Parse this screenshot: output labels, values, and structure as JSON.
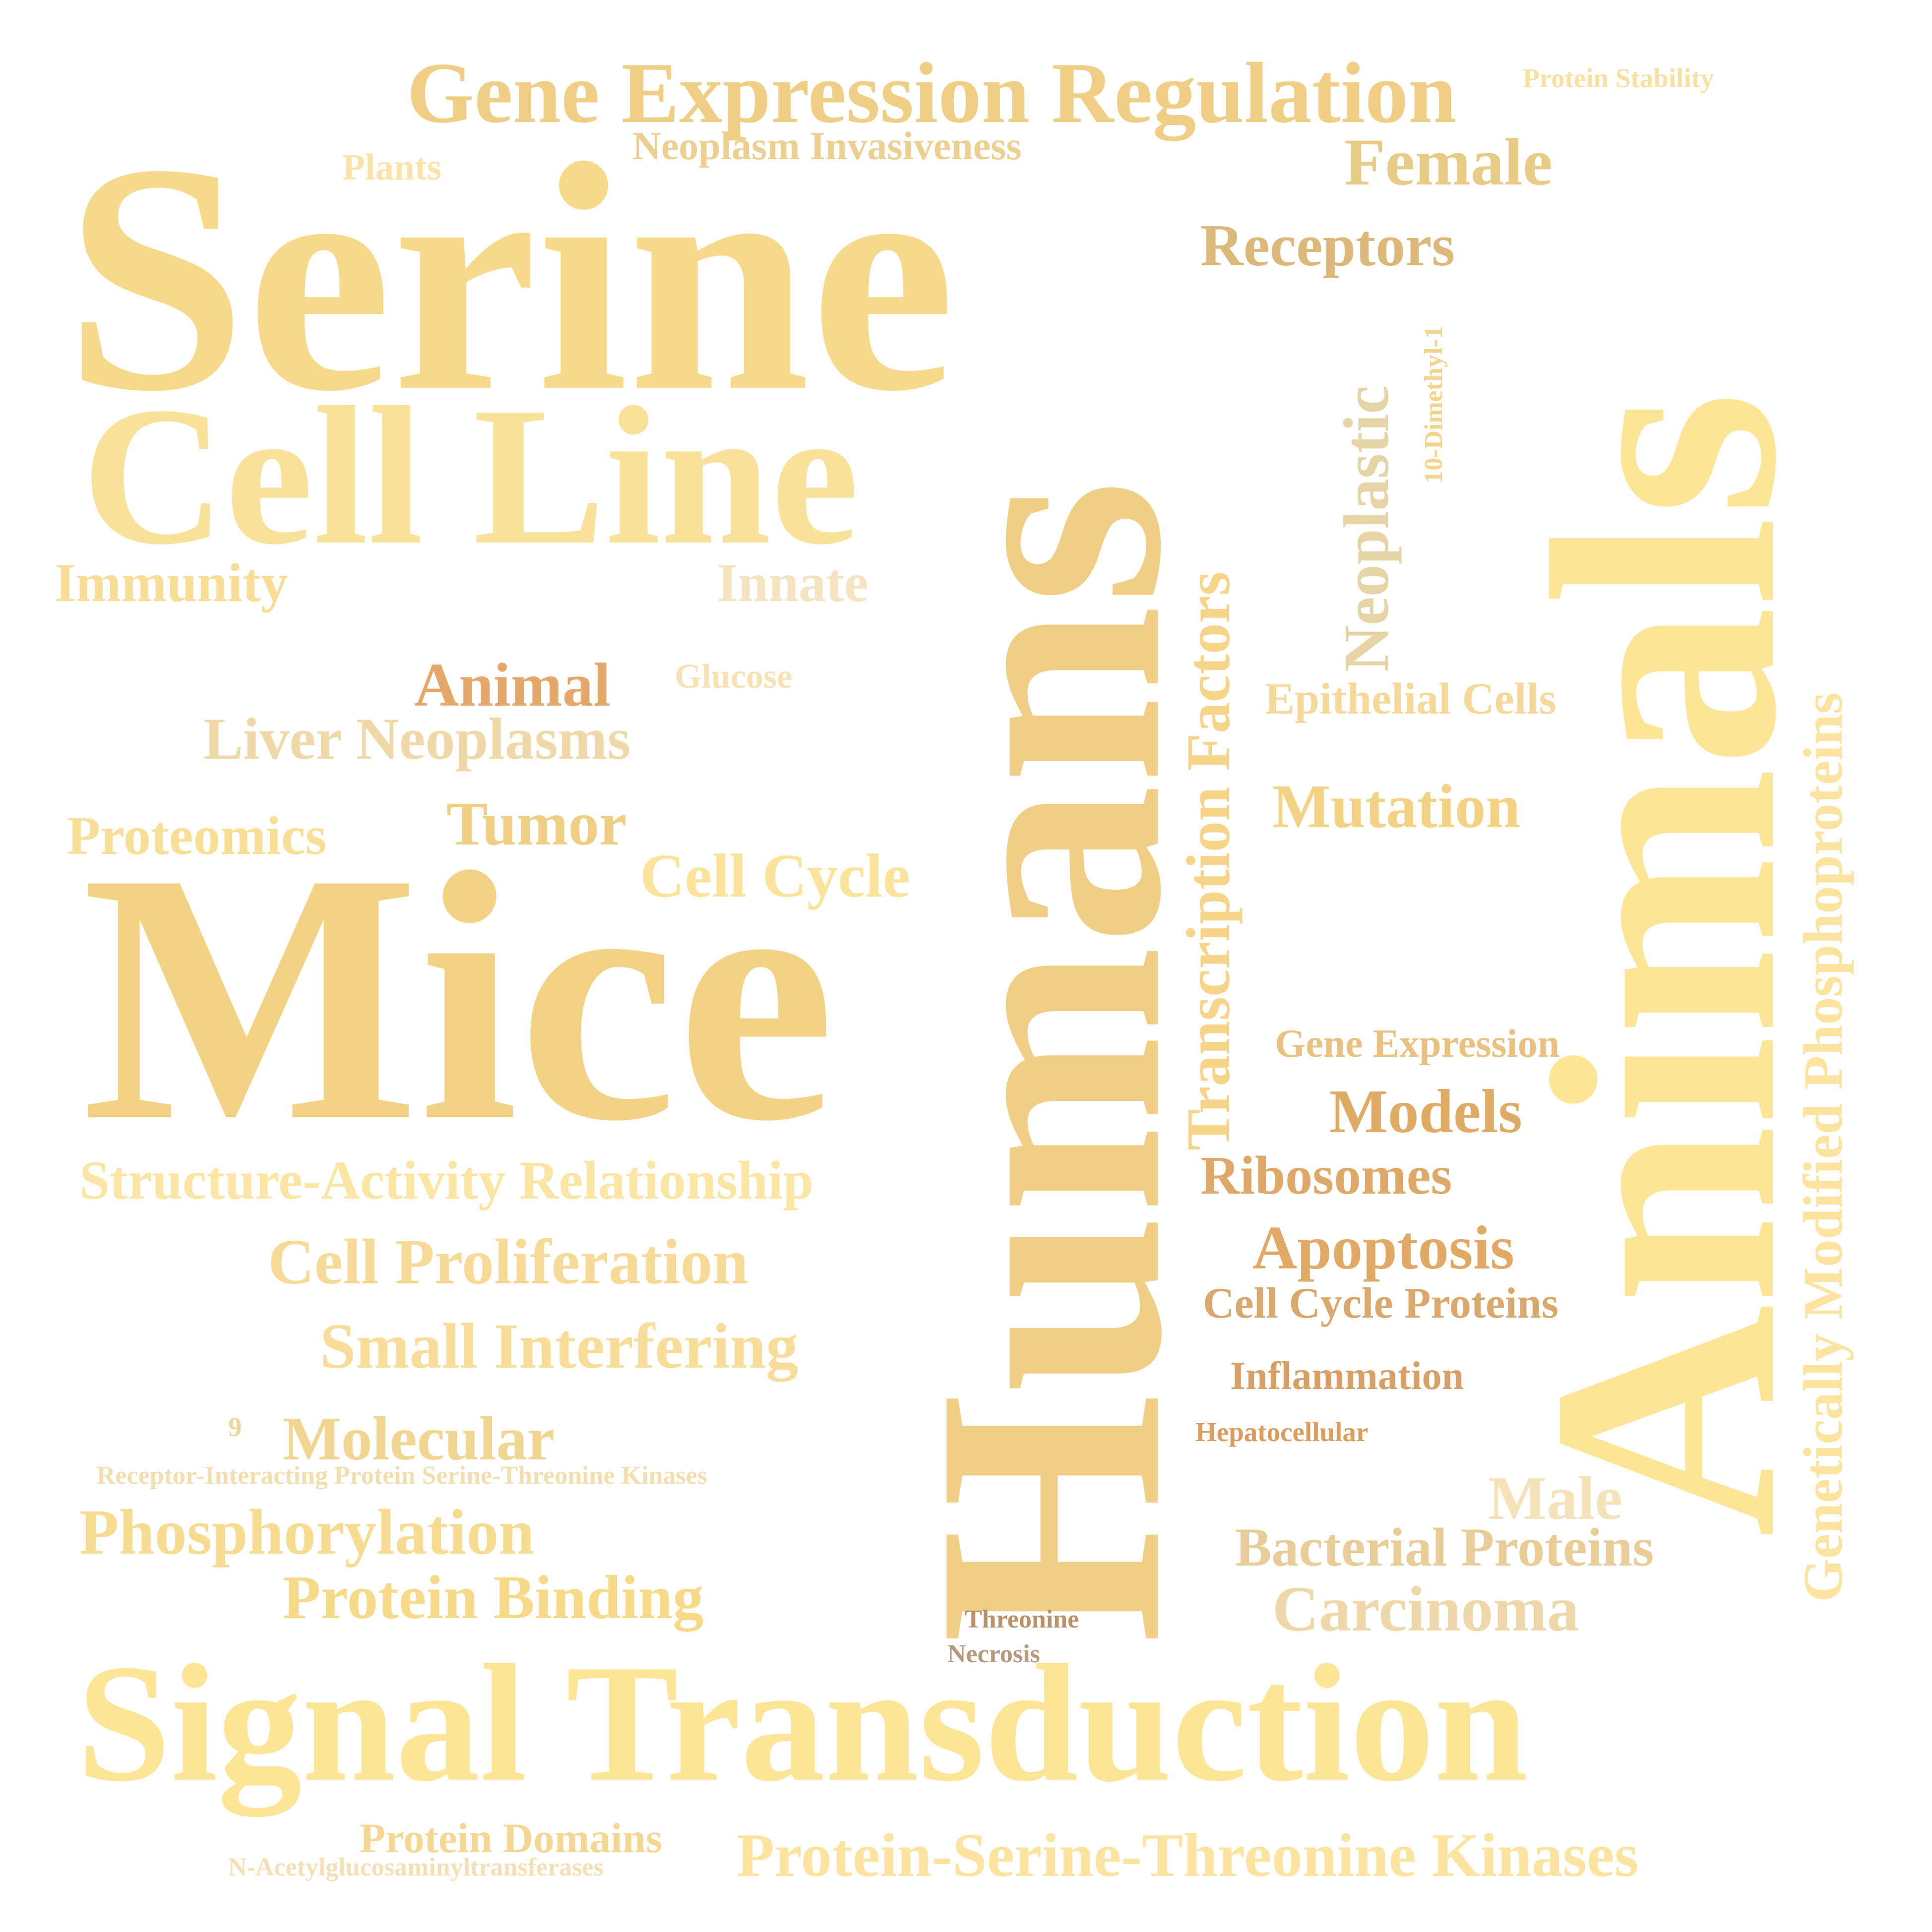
{
  "word_cloud": {
    "words": [
      {
        "id": "serine",
        "text": "Serine",
        "color": "#f6d98a"
      },
      {
        "id": "cellline",
        "text": "Cell Line",
        "color": "#f8e29a"
      },
      {
        "id": "mice",
        "text": "Mice",
        "color": "#f2d386"
      },
      {
        "id": "signal",
        "text": "Signal Transduction",
        "color": "#fde597"
      },
      {
        "id": "humans",
        "text": "Humans",
        "color": "#eecf85"
      },
      {
        "id": "animals",
        "text": "Animals",
        "color": "#fde598"
      },
      {
        "id": "genmod",
        "text": "Genetically Modified Phosphoproteins",
        "color": "#fce4a0"
      },
      {
        "id": "tf",
        "text": "Transcription Factors",
        "color": "#f6d58a"
      },
      {
        "id": "neo",
        "text": "Neoplastic",
        "color": "#e6d3a6"
      },
      {
        "id": "dimethyl",
        "text": "10-Dimethyl-1",
        "color": "#f3d48d"
      },
      {
        "id": "geneexpreg",
        "text": "Gene Expression Regulation",
        "color": "#efcf85"
      },
      {
        "id": "protstab",
        "text": "Protein Stability",
        "color": "#f8e0a0"
      },
      {
        "id": "neoinv",
        "text": "Neoplasm Invasiveness",
        "color": "#ecd092"
      },
      {
        "id": "plants",
        "text": "Plants",
        "color": "#f9e3a8"
      },
      {
        "id": "female",
        "text": "Female",
        "color": "#e8cc86"
      },
      {
        "id": "receptors",
        "text": "Receptors",
        "color": "#dcb97a"
      },
      {
        "id": "immunity",
        "text": "Immunity",
        "color": "#f7dd95"
      },
      {
        "id": "innate",
        "text": "Innate",
        "color": "#f4e3bf"
      },
      {
        "id": "animal",
        "text": "Animal",
        "color": "#e4a86a"
      },
      {
        "id": "glucose",
        "text": "Glucose",
        "color": "#f6e2b5"
      },
      {
        "id": "epith",
        "text": "Epithelial Cells",
        "color": "#f5d89a"
      },
      {
        "id": "liverneo",
        "text": "Liver Neoplasms",
        "color": "#efd9a8"
      },
      {
        "id": "mutation",
        "text": "Mutation",
        "color": "#f4d284"
      },
      {
        "id": "proteomics",
        "text": "Proteomics",
        "color": "#f8df96"
      },
      {
        "id": "tumor",
        "text": "Tumor",
        "color": "#efcf86"
      },
      {
        "id": "cellcycle",
        "text": "Cell Cycle",
        "color": "#fbe49a"
      },
      {
        "id": "geneexp",
        "text": "Gene Expression",
        "color": "#e9c281"
      },
      {
        "id": "models",
        "text": "Models",
        "color": "#dfac68"
      },
      {
        "id": "sar",
        "text": "Structure-Activity Relationship",
        "color": "#fae5a2"
      },
      {
        "id": "ribosomes",
        "text": "Ribosomes",
        "color": "#dea869"
      },
      {
        "id": "apoptosis",
        "text": "Apoptosis",
        "color": "#e2a866"
      },
      {
        "id": "cellprolif",
        "text": "Cell Proliferation",
        "color": "#f6da96"
      },
      {
        "id": "ccproteins",
        "text": "Cell Cycle Proteins",
        "color": "#d9a86c"
      },
      {
        "id": "smallint",
        "text": "Small Interfering",
        "color": "#f7dd98"
      },
      {
        "id": "inflam",
        "text": "Inflammation",
        "color": "#d8a066"
      },
      {
        "id": "nine",
        "text": "9",
        "color": "#edd59a"
      },
      {
        "id": "molecular",
        "text": "Molecular",
        "color": "#f2d590"
      },
      {
        "id": "hepato",
        "text": "Hepatocellular",
        "color": "#d99d5e"
      },
      {
        "id": "ripk",
        "text": "Receptor-Interacting Protein Serine-Threonine Kinases",
        "color": "#f1dfb0"
      },
      {
        "id": "male",
        "text": "Male",
        "color": "#f6e2b8"
      },
      {
        "id": "phospho",
        "text": "Phosphorylation",
        "color": "#f7db90"
      },
      {
        "id": "bactprot",
        "text": "Bacterial Proteins",
        "color": "#e8cd98"
      },
      {
        "id": "protbind",
        "text": "Protein Binding",
        "color": "#f7da88"
      },
      {
        "id": "carcinoma",
        "text": "Carcinoma",
        "color": "#eed7a8"
      },
      {
        "id": "threonine",
        "text": "Threonine",
        "color": "#b9926a"
      },
      {
        "id": "necrosis",
        "text": "Necrosis",
        "color": "#b39a7e"
      },
      {
        "id": "protdom",
        "text": "Protein Domains",
        "color": "#f5d794"
      },
      {
        "id": "pstk",
        "text": "Protein-Serine-Threonine Kinases",
        "color": "#fbe3a0"
      },
      {
        "id": "nacetyl",
        "text": "N-Acetylglucosaminyltransferases",
        "color": "#f4e0b6"
      }
    ]
  }
}
